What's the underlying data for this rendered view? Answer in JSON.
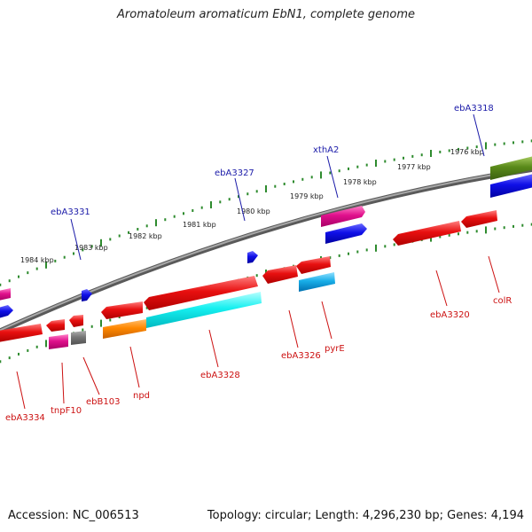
{
  "title": "Aromatoleum aromaticum EbN1, complete genome",
  "footer": {
    "accession": "Accession: NC_006513",
    "summary": "Topology: circular; Length: 4,296,230 bp; Genes: 4,194"
  },
  "ticks": {
    "outer_labels": [
      "1984 kbp",
      "1983 kbp",
      "1982 kbp",
      "1981 kbp",
      "1980 kbp",
      "1979 kbp",
      "1978 kbp",
      "1977 kbp",
      "1976 kbp"
    ]
  },
  "genes": {
    "top_labels": [
      "ebA3331",
      "ebA3327",
      "xthA2",
      "ebA3318"
    ],
    "bottom_labels": [
      "ebA3334",
      "tnpF10",
      "ebB103",
      "npd",
      "ebA3328",
      "ebA3326",
      "pyrE",
      "ebA3320",
      "colR"
    ]
  },
  "colors": {
    "backbone": "#888888",
    "tick": "#2e8b2e",
    "label_top": "#1a1aa8",
    "label_bottom": "#cc1111",
    "red": "#e01010",
    "pink": "#e0108c",
    "blue": "#1010e0",
    "olive": "#5a8a1a",
    "cyan": "#16f0f0",
    "orange": "#ff8800",
    "gray": "#777777",
    "skyblue": "#18aee8"
  }
}
